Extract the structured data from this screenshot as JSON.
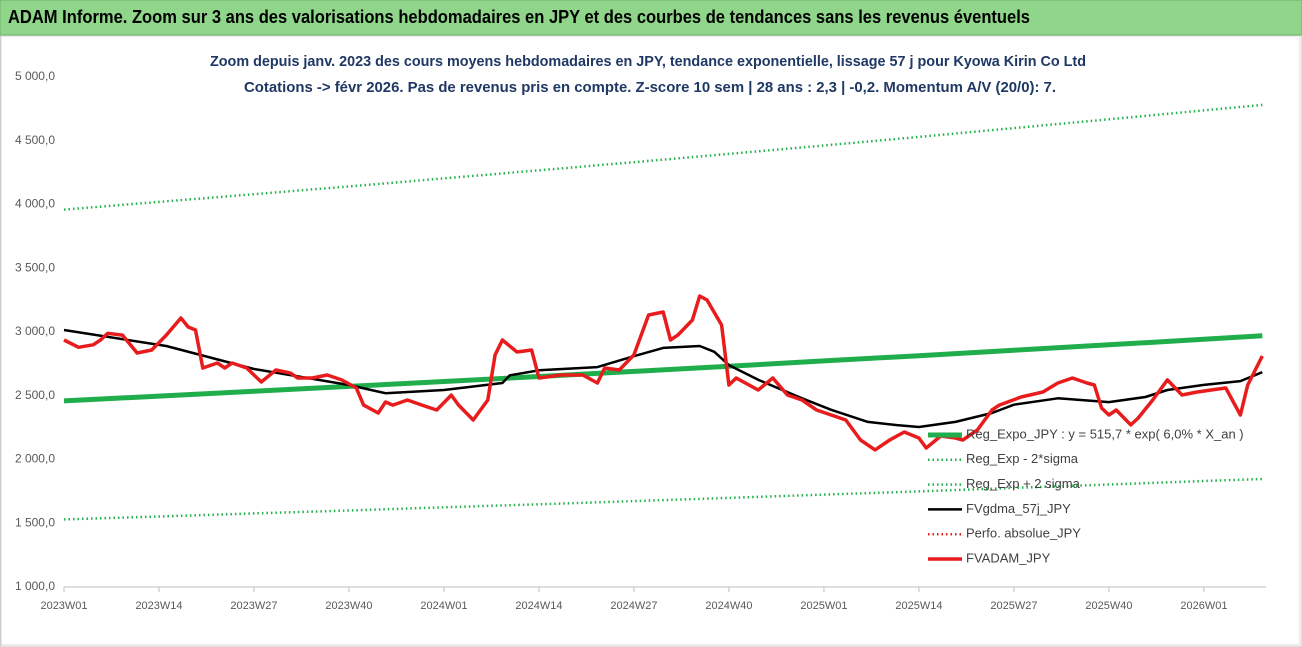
{
  "chart_data": {
    "type": "line",
    "banner": "ADAM Informe. Zoom sur 3 ans des valorisations hebdomadaires en JPY et des courbes de tendances sans les revenus éventuels",
    "title": "Zoom depuis janv. 2023 des cours moyens hebdomadaires en JPY, tendance exponentielle, lissage 57 j pour Kyowa Kirin Co Ltd",
    "subtitle": "Cotations -> févr 2026. Pas de revenus pris en compte. Z-score 10 sem | 28 ans : 2,3 | -0,2. Momentum A/V (20/0): 7.",
    "xlim": [
      0,
      164.5
    ],
    "xticks": [
      {
        "value": 0,
        "label": "2023W01"
      },
      {
        "value": 13,
        "label": "2023W14"
      },
      {
        "value": 26,
        "label": "2023W27"
      },
      {
        "value": 39,
        "label": "2023W40"
      },
      {
        "value": 52,
        "label": "2024W01"
      },
      {
        "value": 65,
        "label": "2024W14"
      },
      {
        "value": 78,
        "label": "2024W27"
      },
      {
        "value": 91,
        "label": "2024W40"
      },
      {
        "value": 104,
        "label": "2025W01"
      },
      {
        "value": 117,
        "label": "2025W14"
      },
      {
        "value": 130,
        "label": "2025W27"
      },
      {
        "value": 143,
        "label": "2025W40"
      },
      {
        "value": 156,
        "label": "2026W01"
      }
    ],
    "ylim": [
      1000,
      5000
    ],
    "yticks": [
      {
        "value": 1000,
        "label": "1 000,0"
      },
      {
        "value": 1500,
        "label": "1 500,0"
      },
      {
        "value": 2000,
        "label": "2 000,0"
      },
      {
        "value": 2500,
        "label": "2 500,0"
      },
      {
        "value": 3000,
        "label": "3 000,0"
      },
      {
        "value": 3500,
        "label": "3 500,0"
      },
      {
        "value": 4000,
        "label": "4 000,0"
      },
      {
        "value": 4500,
        "label": "4 500,0"
      },
      {
        "value": 5000,
        "label": "5 000,0"
      }
    ],
    "grid": false,
    "series": [
      {
        "name": "Reg_Expo_JPY : y = 515,7 * exp( 6,0% *  X_an )",
        "color": "#1fae4b",
        "style": "solid",
        "width": 5,
        "x": [
          0,
          13,
          26,
          39,
          52,
          65,
          78,
          91,
          104,
          117,
          130,
          143,
          156,
          164
        ],
        "values": [
          2460,
          2497,
          2535,
          2573,
          2612,
          2651,
          2691,
          2731,
          2773,
          2814,
          2857,
          2900,
          2943,
          2970
        ]
      },
      {
        "name": "Reg_Exp - 2*sigma",
        "color": "#22b14c",
        "style": "dotted",
        "width": 3,
        "x": [
          0,
          13,
          26,
          39,
          52,
          65,
          78,
          91,
          104,
          117,
          130,
          143,
          156,
          164
        ],
        "values": [
          1530,
          1553,
          1577,
          1600,
          1625,
          1649,
          1674,
          1699,
          1725,
          1750,
          1777,
          1804,
          1831,
          1847
        ]
      },
      {
        "name": "Reg_Exp + 2 sigma",
        "color": "#22b14c",
        "style": "dotted",
        "width": 3,
        "x": [
          0,
          13,
          26,
          39,
          52,
          65,
          78,
          91,
          104,
          117,
          130,
          143,
          156,
          164
        ],
        "values": [
          3960,
          4020,
          4081,
          4142,
          4205,
          4268,
          4332,
          4397,
          4463,
          4530,
          4599,
          4668,
          4738,
          4781
        ]
      },
      {
        "name": "FVgdma_57j_JPY",
        "color": "#000000",
        "style": "solid",
        "width": 2.5,
        "x": [
          0,
          14,
          26,
          39,
          44,
          52,
          60,
          61,
          65,
          73,
          78,
          82,
          87,
          89,
          91,
          95,
          101,
          105,
          110,
          114,
          117,
          122,
          127,
          130,
          136,
          143,
          148,
          151,
          156,
          161,
          164
        ],
        "values": [
          3016,
          2890,
          2710,
          2584,
          2520,
          2545,
          2600,
          2660,
          2700,
          2725,
          2810,
          2875,
          2890,
          2845,
          2740,
          2625,
          2480,
          2390,
          2295,
          2270,
          2255,
          2295,
          2365,
          2430,
          2480,
          2450,
          2490,
          2545,
          2585,
          2615,
          2685
        ]
      },
      {
        "name": "Perfo. absolue_JPY",
        "color": "#e81c1c",
        "style": "dotted",
        "width": 2,
        "x": [],
        "values": []
      },
      {
        "name": "FVADAM_JPY",
        "color": "#e81c1c",
        "style": "solid",
        "width": 3.5,
        "x": [
          0,
          2,
          4,
          5,
          6,
          8,
          10,
          12,
          14,
          16,
          17,
          18,
          19,
          21,
          22,
          23,
          25,
          26,
          27,
          29,
          31,
          32,
          34,
          36,
          38,
          40,
          41,
          43,
          44,
          45,
          47,
          49,
          51,
          53,
          54,
          56,
          58,
          59,
          60,
          62,
          64,
          65,
          68,
          71,
          73,
          74,
          76,
          78,
          80,
          82,
          83,
          84,
          86,
          87,
          88,
          90,
          91,
          92,
          95,
          97,
          99,
          101,
          103,
          105,
          107,
          109,
          111,
          113,
          115,
          117,
          118,
          120,
          122,
          123,
          125,
          127,
          128,
          131,
          134,
          136,
          138,
          140,
          141,
          142,
          143,
          144,
          146,
          147,
          149,
          151,
          153,
          155,
          157,
          159,
          161,
          162,
          164
        ],
        "values": [
          2937,
          2880,
          2900,
          2937,
          2990,
          2976,
          2835,
          2859,
          2976,
          3110,
          3039,
          3016,
          2718,
          2757,
          2718,
          2757,
          2718,
          2663,
          2608,
          2702,
          2678,
          2639,
          2639,
          2663,
          2624,
          2561,
          2427,
          2365,
          2451,
          2427,
          2467,
          2427,
          2388,
          2505,
          2427,
          2310,
          2467,
          2820,
          2937,
          2843,
          2859,
          2639,
          2663,
          2663,
          2600,
          2718,
          2702,
          2820,
          3133,
          3157,
          2937,
          2976,
          3094,
          3282,
          3251,
          3055,
          2584,
          2639,
          2545,
          2639,
          2506,
          2467,
          2388,
          2349,
          2310,
          2153,
          2075,
          2153,
          2216,
          2169,
          2090,
          2184,
          2169,
          2153,
          2231,
          2388,
          2427,
          2490,
          2530,
          2600,
          2639,
          2600,
          2584,
          2404,
          2349,
          2388,
          2271,
          2325,
          2467,
          2624,
          2506,
          2529,
          2545,
          2561,
          2349,
          2584,
          2812
        ]
      }
    ]
  }
}
